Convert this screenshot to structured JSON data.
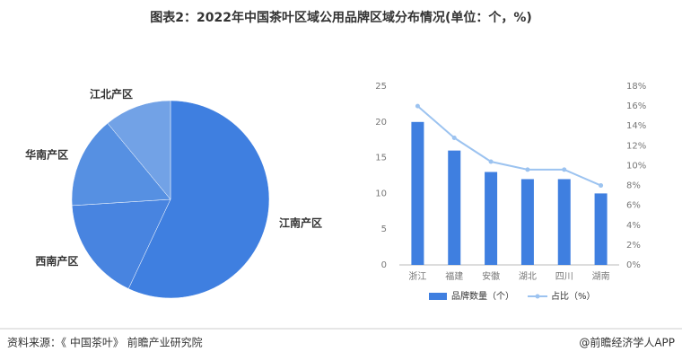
{
  "title": "图表2：2022年中国茶叶区域公用品牌区域分布情况(单位：个，%)",
  "chart_data": [
    {
      "type": "pie",
      "categories": [
        "江南产区",
        "西南产区",
        "华南产区",
        "江北产区"
      ],
      "values": [
        57,
        17,
        15,
        11
      ],
      "colors": [
        "#3f7fe0",
        "#4884e0",
        "#5690e2",
        "#72a2e6"
      ]
    },
    {
      "type": "bar",
      "categories": [
        "浙江",
        "福建",
        "安徽",
        "湖北",
        "四川",
        "湖南"
      ],
      "series": [
        {
          "name": "品牌数量（个）",
          "color": "#3f7fe0",
          "values": [
            20,
            16,
            13,
            12,
            12,
            10
          ]
        },
        {
          "name": "占比（%）",
          "color": "#9cc3f0",
          "axis": "y2",
          "values": [
            16,
            12.8,
            10.4,
            9.6,
            9.6,
            8
          ]
        }
      ],
      "ylim": [
        0,
        25
      ],
      "yticks": [
        0,
        5,
        10,
        15,
        20,
        25
      ],
      "y2lim": [
        0,
        18
      ],
      "y2ticks": [
        {
          "value": 0,
          "label": "0%"
        },
        {
          "value": 2,
          "label": "2%"
        },
        {
          "value": 4,
          "label": "4%"
        },
        {
          "value": 6,
          "label": "6%"
        },
        {
          "value": 8,
          "label": "8%"
        },
        {
          "value": 10,
          "label": "10%"
        },
        {
          "value": 12,
          "label": "12%"
        },
        {
          "value": 14,
          "label": "14%"
        },
        {
          "value": 16,
          "label": "16%"
        },
        {
          "value": 18,
          "label": "18%"
        }
      ],
      "legend": "bottom"
    }
  ],
  "source": "资料来源：《 中国茶叶》 前瞻产业研究院",
  "brand": "@前瞻经济学人APP"
}
